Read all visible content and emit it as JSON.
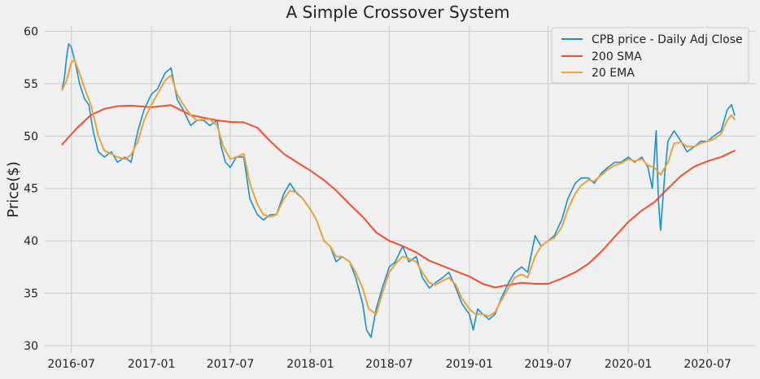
{
  "chart_data": {
    "type": "line",
    "title": "A Simple Crossover System",
    "xlabel": "",
    "ylabel": "Price($)",
    "x_range": [
      "2016-05-01",
      "2020-10-20"
    ],
    "ylim": [
      29.3,
      60.5
    ],
    "x_ticks": [
      {
        "date": "2016-07-01",
        "label": "2016-07"
      },
      {
        "date": "2017-01-01",
        "label": "2017-01"
      },
      {
        "date": "2017-07-01",
        "label": "2017-07"
      },
      {
        "date": "2018-01-01",
        "label": "2018-01"
      },
      {
        "date": "2018-07-01",
        "label": "2018-07"
      },
      {
        "date": "2019-01-01",
        "label": "2019-01"
      },
      {
        "date": "2019-07-01",
        "label": "2019-07"
      },
      {
        "date": "2020-01-01",
        "label": "2020-01"
      },
      {
        "date": "2020-07-01",
        "label": "2020-07"
      }
    ],
    "y_ticks": [
      30,
      35,
      40,
      45,
      50,
      55,
      60
    ],
    "grid": true,
    "legend_position": "top-right",
    "series": [
      {
        "name": "CPB price - Daily Adj Close",
        "color": "#1a8fd1",
        "points": [
          [
            "2016-06-10",
            54.5
          ],
          [
            "2016-06-15",
            55.5
          ],
          [
            "2016-06-20",
            57.5
          ],
          [
            "2016-06-25",
            58.8
          ],
          [
            "2016-07-01",
            58.5
          ],
          [
            "2016-07-10",
            57.0
          ],
          [
            "2016-07-20",
            55.0
          ],
          [
            "2016-08-01",
            53.5
          ],
          [
            "2016-08-10",
            53.0
          ],
          [
            "2016-08-20",
            50.5
          ],
          [
            "2016-09-01",
            48.5
          ],
          [
            "2016-09-15",
            48.0
          ],
          [
            "2016-10-01",
            48.5
          ],
          [
            "2016-10-15",
            47.5
          ],
          [
            "2016-11-01",
            48.0
          ],
          [
            "2016-11-15",
            47.5
          ],
          [
            "2016-12-01",
            50.5
          ],
          [
            "2016-12-15",
            52.5
          ],
          [
            "2017-01-01",
            54.0
          ],
          [
            "2017-01-15",
            54.5
          ],
          [
            "2017-02-01",
            56.0
          ],
          [
            "2017-02-15",
            56.5
          ],
          [
            "2017-03-01",
            53.5
          ],
          [
            "2017-03-15",
            52.5
          ],
          [
            "2017-04-01",
            51.0
          ],
          [
            "2017-04-15",
            51.5
          ],
          [
            "2017-05-01",
            51.5
          ],
          [
            "2017-05-15",
            51.0
          ],
          [
            "2017-06-01",
            51.5
          ],
          [
            "2017-06-10",
            49.0
          ],
          [
            "2017-06-20",
            47.5
          ],
          [
            "2017-07-01",
            47.0
          ],
          [
            "2017-07-15",
            48.0
          ],
          [
            "2017-08-01",
            48.0
          ],
          [
            "2017-08-15",
            44.0
          ],
          [
            "2017-09-01",
            42.5
          ],
          [
            "2017-09-15",
            42.0
          ],
          [
            "2017-10-01",
            42.5
          ],
          [
            "2017-10-15",
            42.5
          ],
          [
            "2017-11-01",
            44.5
          ],
          [
            "2017-11-15",
            45.5
          ],
          [
            "2017-12-01",
            44.5
          ],
          [
            "2017-12-15",
            44.0
          ],
          [
            "2018-01-01",
            43.0
          ],
          [
            "2018-01-15",
            42.0
          ],
          [
            "2018-02-01",
            40.0
          ],
          [
            "2018-02-15",
            39.5
          ],
          [
            "2018-03-01",
            38.0
          ],
          [
            "2018-03-15",
            38.5
          ],
          [
            "2018-04-01",
            38.0
          ],
          [
            "2018-04-15",
            36.5
          ],
          [
            "2018-05-01",
            34.0
          ],
          [
            "2018-05-10",
            31.5
          ],
          [
            "2018-05-20",
            30.8
          ],
          [
            "2018-06-01",
            33.5
          ],
          [
            "2018-06-15",
            35.5
          ],
          [
            "2018-07-01",
            37.5
          ],
          [
            "2018-07-15",
            38.0
          ],
          [
            "2018-08-01",
            39.5
          ],
          [
            "2018-08-15",
            38.0
          ],
          [
            "2018-09-01",
            38.5
          ],
          [
            "2018-09-15",
            36.5
          ],
          [
            "2018-10-01",
            35.5
          ],
          [
            "2018-10-15",
            36.0
          ],
          [
            "2018-11-01",
            36.5
          ],
          [
            "2018-11-15",
            37.0
          ],
          [
            "2018-12-01",
            35.5
          ],
          [
            "2018-12-15",
            34.0
          ],
          [
            "2019-01-01",
            33.0
          ],
          [
            "2019-01-10",
            31.5
          ],
          [
            "2019-01-20",
            33.5
          ],
          [
            "2019-02-01",
            33.0
          ],
          [
            "2019-02-15",
            32.5
          ],
          [
            "2019-03-01",
            33.0
          ],
          [
            "2019-03-15",
            34.5
          ],
          [
            "2019-04-01",
            36.0
          ],
          [
            "2019-04-15",
            37.0
          ],
          [
            "2019-05-01",
            37.5
          ],
          [
            "2019-05-15",
            37.0
          ],
          [
            "2019-06-01",
            40.5
          ],
          [
            "2019-06-15",
            39.5
          ],
          [
            "2019-07-01",
            40.0
          ],
          [
            "2019-07-15",
            40.5
          ],
          [
            "2019-08-01",
            42.0
          ],
          [
            "2019-08-15",
            44.0
          ],
          [
            "2019-09-01",
            45.5
          ],
          [
            "2019-09-15",
            46.0
          ],
          [
            "2019-10-01",
            46.0
          ],
          [
            "2019-10-15",
            45.5
          ],
          [
            "2019-11-01",
            46.5
          ],
          [
            "2019-11-15",
            47.0
          ],
          [
            "2019-12-01",
            47.5
          ],
          [
            "2019-12-15",
            47.5
          ],
          [
            "2020-01-01",
            48.0
          ],
          [
            "2020-01-15",
            47.5
          ],
          [
            "2020-02-01",
            48.0
          ],
          [
            "2020-02-15",
            47.0
          ],
          [
            "2020-02-25",
            45.0
          ],
          [
            "2020-03-05",
            50.5
          ],
          [
            "2020-03-10",
            44.0
          ],
          [
            "2020-03-15",
            41.0
          ],
          [
            "2020-03-25",
            46.5
          ],
          [
            "2020-04-01",
            49.5
          ],
          [
            "2020-04-15",
            50.5
          ],
          [
            "2020-05-01",
            49.5
          ],
          [
            "2020-05-15",
            48.5
          ],
          [
            "2020-06-01",
            49.0
          ],
          [
            "2020-06-15",
            49.5
          ],
          [
            "2020-07-01",
            49.5
          ],
          [
            "2020-07-15",
            50.0
          ],
          [
            "2020-08-01",
            50.5
          ],
          [
            "2020-08-15",
            52.5
          ],
          [
            "2020-08-25",
            53.0
          ],
          [
            "2020-09-01",
            52.0
          ]
        ]
      },
      {
        "name": "200 SMA",
        "color": "#f04f30",
        "points": [
          [
            "2016-06-10",
            49.2
          ],
          [
            "2016-07-15",
            50.8
          ],
          [
            "2016-08-15",
            52.0
          ],
          [
            "2016-09-15",
            52.6
          ],
          [
            "2016-10-15",
            52.85
          ],
          [
            "2016-11-15",
            52.9
          ],
          [
            "2017-01-01",
            52.75
          ],
          [
            "2017-02-15",
            52.95
          ],
          [
            "2017-04-01",
            52.0
          ],
          [
            "2017-06-01",
            51.5
          ],
          [
            "2017-07-01",
            51.35
          ],
          [
            "2017-08-01",
            51.3
          ],
          [
            "2017-09-01",
            50.8
          ],
          [
            "2017-10-01",
            49.5
          ],
          [
            "2017-11-01",
            48.3
          ],
          [
            "2017-12-01",
            47.5
          ],
          [
            "2018-01-01",
            46.7
          ],
          [
            "2018-02-01",
            45.8
          ],
          [
            "2018-03-01",
            44.8
          ],
          [
            "2018-04-01",
            43.5
          ],
          [
            "2018-05-01",
            42.3
          ],
          [
            "2018-06-01",
            40.8
          ],
          [
            "2018-07-01",
            40.0
          ],
          [
            "2018-08-01",
            39.5
          ],
          [
            "2018-09-01",
            38.9
          ],
          [
            "2018-10-01",
            38.1
          ],
          [
            "2018-11-01",
            37.6
          ],
          [
            "2018-12-01",
            37.1
          ],
          [
            "2019-01-01",
            36.6
          ],
          [
            "2019-02-01",
            35.9
          ],
          [
            "2019-03-01",
            35.55
          ],
          [
            "2019-04-01",
            35.8
          ],
          [
            "2019-05-01",
            36.0
          ],
          [
            "2019-06-01",
            35.9
          ],
          [
            "2019-07-01",
            35.9
          ],
          [
            "2019-08-01",
            36.4
          ],
          [
            "2019-09-01",
            37.0
          ],
          [
            "2019-10-01",
            37.8
          ],
          [
            "2019-11-01",
            39.0
          ],
          [
            "2019-12-01",
            40.4
          ],
          [
            "2020-01-01",
            41.8
          ],
          [
            "2020-02-01",
            42.9
          ],
          [
            "2020-03-01",
            43.7
          ],
          [
            "2020-04-01",
            45.0
          ],
          [
            "2020-05-01",
            46.2
          ],
          [
            "2020-06-01",
            47.1
          ],
          [
            "2020-07-01",
            47.6
          ],
          [
            "2020-08-01",
            48.0
          ],
          [
            "2020-09-01",
            48.6
          ]
        ]
      },
      {
        "name": "20 EMA",
        "color": "#e8a33a",
        "points": [
          [
            "2016-06-10",
            54.4
          ],
          [
            "2016-06-20",
            55.3
          ],
          [
            "2016-07-01",
            57.0
          ],
          [
            "2016-07-08",
            57.3
          ],
          [
            "2016-07-20",
            56.0
          ],
          [
            "2016-08-01",
            54.5
          ],
          [
            "2016-08-15",
            53.0
          ],
          [
            "2016-09-01",
            50.0
          ],
          [
            "2016-09-15",
            48.6
          ],
          [
            "2016-10-01",
            48.3
          ],
          [
            "2016-10-15",
            48.0
          ],
          [
            "2016-11-01",
            47.8
          ],
          [
            "2016-11-15",
            48.2
          ],
          [
            "2016-12-01",
            49.5
          ],
          [
            "2016-12-15",
            51.5
          ],
          [
            "2017-01-01",
            53.0
          ],
          [
            "2017-01-15",
            54.0
          ],
          [
            "2017-02-01",
            55.3
          ],
          [
            "2017-02-15",
            55.8
          ],
          [
            "2017-03-01",
            54.0
          ],
          [
            "2017-03-15",
            53.0
          ],
          [
            "2017-04-01",
            52.0
          ],
          [
            "2017-04-15",
            51.5
          ],
          [
            "2017-05-01",
            51.6
          ],
          [
            "2017-05-15",
            51.6
          ],
          [
            "2017-06-01",
            51.0
          ],
          [
            "2017-06-15",
            49.0
          ],
          [
            "2017-07-01",
            47.8
          ],
          [
            "2017-07-15",
            48.0
          ],
          [
            "2017-08-01",
            48.3
          ],
          [
            "2017-08-15",
            45.5
          ],
          [
            "2017-09-01",
            43.5
          ],
          [
            "2017-09-15",
            42.5
          ],
          [
            "2017-10-01",
            42.3
          ],
          [
            "2017-10-15",
            42.5
          ],
          [
            "2017-11-01",
            44.0
          ],
          [
            "2017-11-15",
            44.8
          ],
          [
            "2017-12-01",
            44.6
          ],
          [
            "2017-12-15",
            44.0
          ],
          [
            "2018-01-01",
            43.0
          ],
          [
            "2018-01-15",
            42.0
          ],
          [
            "2018-02-01",
            40.0
          ],
          [
            "2018-02-15",
            39.5
          ],
          [
            "2018-03-01",
            38.5
          ],
          [
            "2018-03-15",
            38.5
          ],
          [
            "2018-04-01",
            38.0
          ],
          [
            "2018-04-15",
            37.0
          ],
          [
            "2018-05-01",
            35.5
          ],
          [
            "2018-05-15",
            33.5
          ],
          [
            "2018-06-01",
            33.0
          ],
          [
            "2018-06-15",
            35.0
          ],
          [
            "2018-07-01",
            37.0
          ],
          [
            "2018-07-15",
            37.8
          ],
          [
            "2018-08-01",
            38.5
          ],
          [
            "2018-08-15",
            38.3
          ],
          [
            "2018-09-01",
            38.0
          ],
          [
            "2018-09-15",
            37.0
          ],
          [
            "2018-10-01",
            36.0
          ],
          [
            "2018-10-15",
            35.8
          ],
          [
            "2018-11-01",
            36.2
          ],
          [
            "2018-11-15",
            36.5
          ],
          [
            "2018-12-01",
            35.8
          ],
          [
            "2018-12-15",
            34.5
          ],
          [
            "2019-01-01",
            33.5
          ],
          [
            "2019-01-15",
            33.0
          ],
          [
            "2019-02-01",
            33.0
          ],
          [
            "2019-02-15",
            32.8
          ],
          [
            "2019-03-01",
            33.2
          ],
          [
            "2019-03-15",
            34.3
          ],
          [
            "2019-04-01",
            35.5
          ],
          [
            "2019-04-15",
            36.5
          ],
          [
            "2019-05-01",
            36.8
          ],
          [
            "2019-05-15",
            36.5
          ],
          [
            "2019-06-01",
            38.5
          ],
          [
            "2019-06-15",
            39.5
          ],
          [
            "2019-07-01",
            40.0
          ],
          [
            "2019-07-15",
            40.3
          ],
          [
            "2019-08-01",
            41.3
          ],
          [
            "2019-08-15",
            43.0
          ],
          [
            "2019-09-01",
            44.5
          ],
          [
            "2019-09-15",
            45.3
          ],
          [
            "2019-10-01",
            45.8
          ],
          [
            "2019-10-15",
            45.7
          ],
          [
            "2019-11-01",
            46.3
          ],
          [
            "2019-11-15",
            46.8
          ],
          [
            "2019-12-01",
            47.2
          ],
          [
            "2019-12-15",
            47.4
          ],
          [
            "2020-01-01",
            47.8
          ],
          [
            "2020-01-15",
            47.6
          ],
          [
            "2020-02-01",
            47.8
          ],
          [
            "2020-02-15",
            47.2
          ],
          [
            "2020-03-01",
            47.0
          ],
          [
            "2020-03-15",
            46.3
          ],
          [
            "2020-04-01",
            47.5
          ],
          [
            "2020-04-15",
            49.3
          ],
          [
            "2020-05-01",
            49.4
          ],
          [
            "2020-05-15",
            49.0
          ],
          [
            "2020-06-01",
            49.0
          ],
          [
            "2020-06-15",
            49.3
          ],
          [
            "2020-07-01",
            49.5
          ],
          [
            "2020-07-15",
            49.7
          ],
          [
            "2020-08-01",
            50.2
          ],
          [
            "2020-08-15",
            51.5
          ],
          [
            "2020-08-25",
            52.0
          ],
          [
            "2020-09-01",
            51.6
          ]
        ]
      }
    ]
  }
}
